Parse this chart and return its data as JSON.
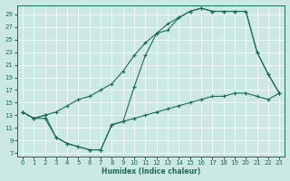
{
  "xlabel": "Humidex (Indice chaleur)",
  "bg_color": "#cce8e2",
  "line_color": "#1a6b5a",
  "grid_color": "#ffffff",
  "xlim": [
    -0.5,
    23.5
  ],
  "ylim": [
    6.5,
    30.5
  ],
  "yticks": [
    7,
    9,
    11,
    13,
    15,
    17,
    19,
    21,
    23,
    25,
    27,
    29
  ],
  "xticks": [
    0,
    1,
    2,
    3,
    4,
    5,
    6,
    7,
    8,
    9,
    10,
    11,
    12,
    13,
    14,
    15,
    16,
    17,
    18,
    19,
    20,
    21,
    22,
    23
  ],
  "line_jagged_x": [
    0,
    1,
    2,
    3,
    4,
    5,
    6,
    7,
    8,
    9,
    10,
    11,
    12,
    13,
    14,
    15,
    16,
    17,
    18,
    19,
    20,
    21,
    22,
    23
  ],
  "line_jagged_y": [
    13.5,
    12.5,
    13.0,
    9.5,
    8.5,
    8.0,
    7.5,
    7.5,
    11.5,
    12.0,
    17.5,
    22.5,
    26.0,
    26.5,
    28.5,
    29.5,
    30.0,
    29.5,
    29.5,
    29.5,
    29.5,
    23.0,
    19.5,
    16.5
  ],
  "line_upper_x": [
    0,
    1,
    2,
    3,
    4,
    5,
    6,
    7,
    8,
    9,
    10,
    11,
    12,
    13,
    14,
    15,
    16,
    17,
    18,
    19,
    20,
    21,
    22,
    23
  ],
  "line_upper_y": [
    13.5,
    12.5,
    13.0,
    13.5,
    14.5,
    15.5,
    16.0,
    17.0,
    18.0,
    20.0,
    22.5,
    24.5,
    26.0,
    27.5,
    28.5,
    29.5,
    30.0,
    29.5,
    29.5,
    29.5,
    29.5,
    23.0,
    19.5,
    16.5
  ],
  "line_lower_x": [
    0,
    1,
    2,
    3,
    4,
    5,
    6,
    7,
    8,
    9,
    10,
    11,
    12,
    13,
    14,
    15,
    16,
    17,
    18,
    19,
    20,
    21,
    22,
    23
  ],
  "line_lower_y": [
    13.5,
    12.5,
    12.5,
    9.5,
    8.5,
    8.0,
    7.5,
    7.5,
    11.5,
    12.0,
    12.5,
    13.0,
    13.5,
    14.0,
    14.5,
    15.0,
    15.5,
    16.0,
    16.0,
    16.5,
    16.5,
    16.0,
    15.5,
    16.5
  ]
}
